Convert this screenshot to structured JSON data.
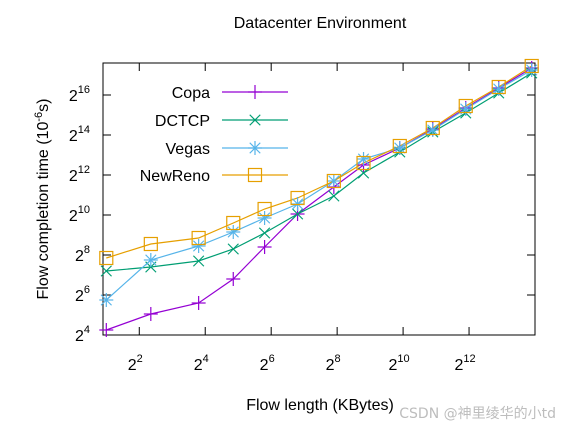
{
  "chart_data": {
    "type": "line",
    "title": "Datacenter Environment",
    "xlabel": "Flow length (KBytes)",
    "ylabel": "Flow completion time (10^-6 s)",
    "xscale": "log2",
    "yscale": "log2",
    "x_exp_range": [
      0.9,
      14.0
    ],
    "y_exp_range": [
      4,
      17.6
    ],
    "x_ticks_exp": [
      2,
      4,
      6,
      8,
      10,
      12
    ],
    "y_ticks_exp": [
      4,
      6,
      8,
      10,
      12,
      14,
      16
    ],
    "x_tick_labels": [
      "2",
      "2",
      "2",
      "2",
      "2",
      "2"
    ],
    "x_tick_label_exps": [
      "2",
      "4",
      "6",
      "8",
      "10",
      "12"
    ],
    "y_tick_labels": [
      "2",
      "2",
      "2",
      "2",
      "2",
      "2",
      "2"
    ],
    "y_tick_label_exps": [
      "4",
      "6",
      "8",
      "10",
      "12",
      "14",
      "16"
    ],
    "ylabel_parts": {
      "before": "Flow completion time (10",
      "sup": "-6",
      "after": "s)"
    },
    "legend_position": "top-left",
    "grid": false,
    "series": [
      {
        "name": "Copa",
        "marker": "plus",
        "color": "#9400d3",
        "x": [
          1,
          2.35,
          3.8,
          4.85,
          5.8,
          6.8,
          7.9,
          8.8,
          9.9,
          10.9,
          11.9,
          12.9,
          13.9
        ],
        "y": [
          4.25,
          5.05,
          5.6,
          6.8,
          8.4,
          10.05,
          11.4,
          12.5,
          13.35,
          14.3,
          15.35,
          16.35,
          17.35
        ]
      },
      {
        "name": "DCTCP",
        "marker": "x",
        "color": "#009e73",
        "x": [
          1,
          2.35,
          3.8,
          4.85,
          5.8,
          6.8,
          7.9,
          8.8,
          9.9,
          10.9,
          11.9,
          12.9,
          13.9
        ],
        "y": [
          7.2,
          7.4,
          7.7,
          8.3,
          9.1,
          10.05,
          10.95,
          12.1,
          13.15,
          14.15,
          15.1,
          16.1,
          17.1
        ]
      },
      {
        "name": "Vegas",
        "marker": "star",
        "color": "#56b4e9",
        "x": [
          1,
          2.35,
          3.8,
          4.85,
          5.8,
          6.8,
          7.9,
          8.8,
          9.9,
          10.9,
          11.9,
          12.9,
          13.9
        ],
        "y": [
          5.75,
          7.75,
          8.45,
          9.15,
          9.85,
          10.55,
          11.7,
          12.8,
          13.35,
          14.25,
          15.3,
          16.3,
          17.25
        ]
      },
      {
        "name": "NewReno",
        "marker": "square",
        "color": "#e69f00",
        "x": [
          1,
          2.35,
          3.8,
          4.85,
          5.8,
          6.8,
          7.9,
          8.8,
          9.9,
          10.9,
          11.9,
          12.9,
          13.9
        ],
        "y": [
          7.85,
          8.55,
          8.85,
          9.6,
          10.3,
          10.85,
          11.7,
          12.6,
          13.45,
          14.35,
          15.45,
          16.4,
          17.45
        ]
      }
    ]
  },
  "watermark": "CSDN @神里绫华的小td"
}
